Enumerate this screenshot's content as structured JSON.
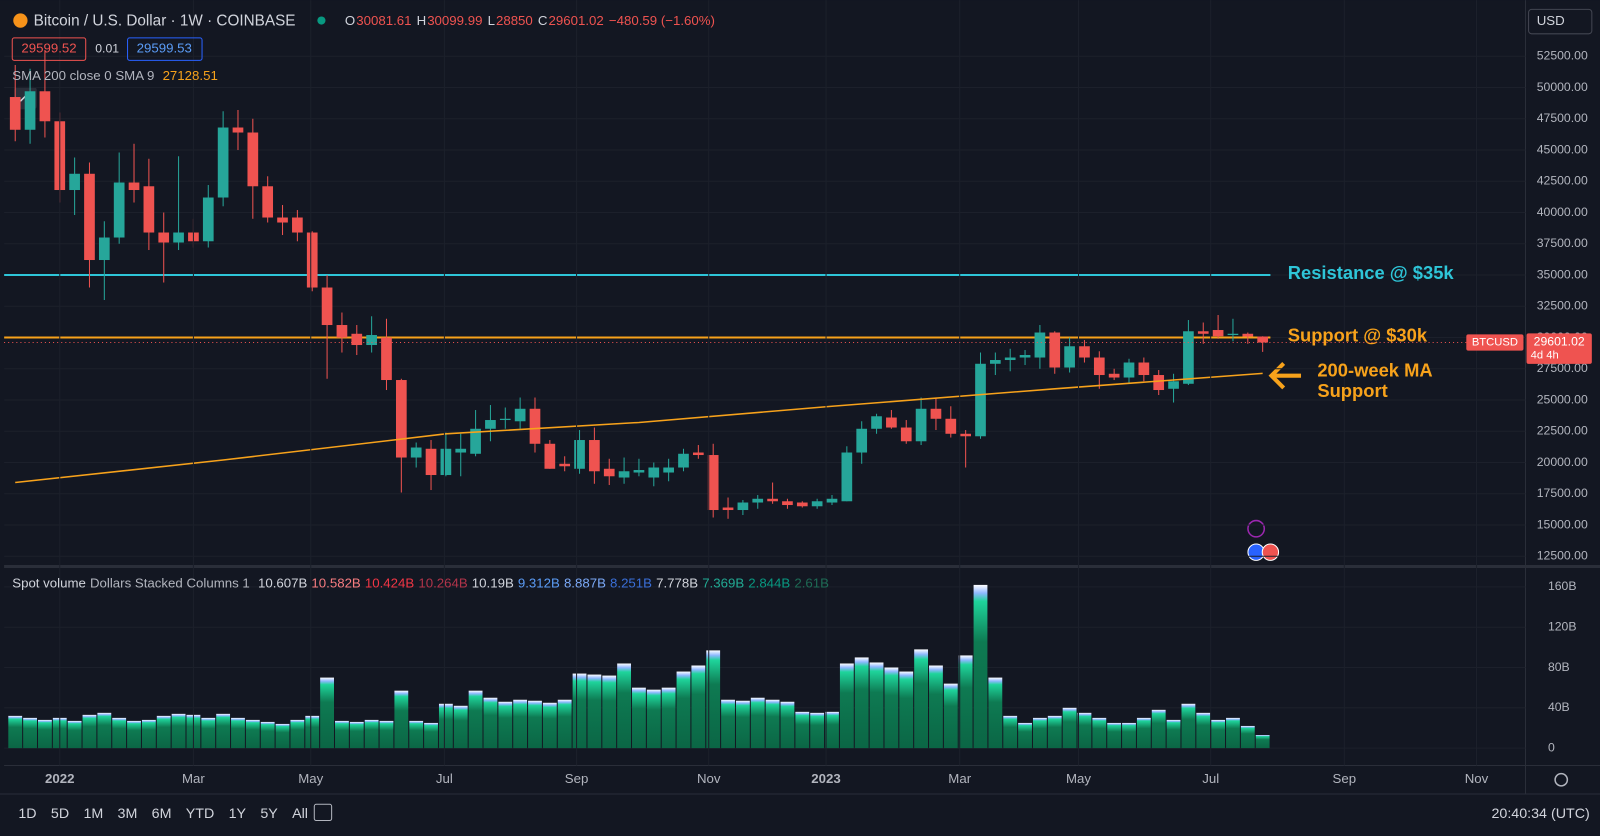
{
  "chart_data": {
    "type": "candlestick",
    "title": "Bitcoin / U.S. Dollar · 1W · COINBASE",
    "ohlc_labels": [
      "O",
      "H",
      "L",
      "C"
    ],
    "change": "−480.59 (−1.60%)",
    "bid": "29599.52",
    "spread": "0.01",
    "ask": "29599.53",
    "indicator_label": "SMA 200 close 0 SMA 9",
    "currency": "USD",
    "up_color": "#26a69a",
    "down_color": "#ef5350",
    "xlim": [
      -0.75,
      101.7
    ],
    "xticks": [
      {
        "value": 3.0,
        "label": "2022"
      },
      {
        "value": 12.0,
        "label": "Mar"
      },
      {
        "value": 19.9,
        "label": "May"
      },
      {
        "value": 28.9,
        "label": "Jul"
      },
      {
        "value": 37.8,
        "label": "Sep"
      },
      {
        "value": 46.7,
        "label": "Nov"
      },
      {
        "value": 54.6,
        "label": "2023"
      },
      {
        "value": 63.6,
        "label": "Mar"
      },
      {
        "value": 71.6,
        "label": "May"
      },
      {
        "value": 80.5,
        "label": "Jul"
      },
      {
        "value": 89.5,
        "label": "Sep"
      },
      {
        "value": 98.4,
        "label": "Nov"
      }
    ],
    "ylim": [
      11684,
      56990
    ],
    "yticks": [
      {
        "value": 12500,
        "label": "12500.00"
      },
      {
        "value": 15000,
        "label": "15000.00"
      },
      {
        "value": 17500,
        "label": "17500.00"
      },
      {
        "value": 20000,
        "label": "20000.00"
      },
      {
        "value": 22500,
        "label": "22500.00"
      },
      {
        "value": 25000,
        "label": "25000.00"
      },
      {
        "value": 27500,
        "label": "27500.00"
      },
      {
        "value": 30000,
        "label": "30000.00"
      },
      {
        "value": 32500,
        "label": "32500.00"
      },
      {
        "value": 35000,
        "label": "35000.00"
      },
      {
        "value": 37500,
        "label": "37500.00"
      },
      {
        "value": 40000,
        "label": "40000.00"
      },
      {
        "value": 42500,
        "label": "42500.00"
      },
      {
        "value": 45000,
        "label": "45000.00"
      },
      {
        "value": 47500,
        "label": "47500.00"
      },
      {
        "value": 50000,
        "label": "50000.00"
      },
      {
        "value": 52500,
        "label": "52500.00"
      }
    ],
    "open": [
      49240,
      46620,
      49700,
      47300,
      41800,
      43100,
      36200,
      38000,
      42400,
      42100,
      38400,
      37600,
      38400,
      37700,
      41200,
      46800,
      46400,
      42100,
      39600,
      39600,
      38400,
      34000,
      31000,
      30300,
      29400,
      30000,
      26600,
      20400,
      21100,
      19000,
      20800,
      20700,
      22700,
      23400,
      23300,
      24300,
      21500,
      19900,
      19500,
      21800,
      19500,
      18800,
      19200,
      18800,
      19200,
      19600,
      20800,
      20600,
      16400,
      16200,
      16800,
      17100,
      16900,
      16800,
      16500,
      16800,
      16900,
      20800,
      22700,
      23600,
      22800,
      21700,
      24300,
      23500,
      22300,
      22100,
      27900,
      28200,
      28400,
      28400,
      30400,
      27600,
      29300,
      28400,
      27100,
      26800,
      28000,
      27000,
      25900,
      26300,
      30500,
      30600,
      30200,
      30300,
      30081.61
    ],
    "high": [
      51800,
      51500,
      53000,
      48000,
      44400,
      44000,
      39300,
      44800,
      45500,
      44300,
      40000,
      44500,
      39500,
      42200,
      48100,
      48200,
      47500,
      42900,
      40600,
      40200,
      38500,
      35000,
      32000,
      31000,
      31700,
      31500,
      26700,
      21600,
      21800,
      22400,
      22300,
      24200,
      24600,
      24400,
      25200,
      25200,
      21800,
      20500,
      22600,
      22800,
      20300,
      20400,
      20300,
      20000,
      20300,
      21100,
      21400,
      21500,
      17200,
      17000,
      17400,
      18400,
      17100,
      16900,
      17100,
      17400,
      21300,
      23300,
      23900,
      24200,
      23400,
      25200,
      25200,
      24500,
      22600,
      28800,
      28800,
      29100,
      29000,
      31000,
      30500,
      30000,
      29800,
      28900,
      27500,
      28300,
      28400,
      27400,
      27100,
      31400,
      31200,
      31800,
      31500,
      30400,
      30099.99
    ],
    "low": [
      45700,
      45500,
      46000,
      40800,
      39800,
      34000,
      33000,
      37500,
      40800,
      37000,
      34400,
      37000,
      37200,
      37200,
      40500,
      45000,
      39500,
      39200,
      38200,
      37700,
      33700,
      26700,
      28800,
      28600,
      28800,
      25800,
      17600,
      19600,
      17800,
      18900,
      18900,
      20500,
      21700,
      22700,
      22700,
      20800,
      19500,
      19300,
      19100,
      18300,
      18200,
      18300,
      18900,
      18100,
      18500,
      19300,
      20300,
      15600,
      15500,
      15800,
      16300,
      16700,
      16300,
      16400,
      16300,
      16600,
      16900,
      19900,
      22300,
      22700,
      21500,
      21400,
      22600,
      22000,
      19600,
      21900,
      27000,
      27300,
      27800,
      27500,
      27100,
      27200,
      28000,
      25900,
      26600,
      26400,
      26500,
      25400,
      24800,
      26200,
      29500,
      29900,
      29700,
      29500,
      28850
    ],
    "close": [
      46620,
      49700,
      47300,
      41800,
      43100,
      36200,
      38000,
      42400,
      41800,
      38400,
      37600,
      38400,
      37700,
      41200,
      46800,
      46400,
      42100,
      39600,
      39200,
      38400,
      34000,
      31000,
      30000,
      29400,
      30200,
      26600,
      20400,
      21200,
      19000,
      21100,
      21100,
      22700,
      23400,
      23500,
      24300,
      21500,
      19500,
      19700,
      21800,
      19300,
      18900,
      19300,
      19400,
      19600,
      19600,
      20700,
      20600,
      16200,
      16200,
      16800,
      17100,
      16900,
      16600,
      16500,
      16900,
      17100,
      20800,
      22700,
      23700,
      22800,
      21700,
      24300,
      23500,
      22300,
      22100,
      27900,
      28200,
      28400,
      28600,
      30400,
      27600,
      29300,
      28400,
      27000,
      26800,
      28000,
      27000,
      25800,
      26500,
      30500,
      30300,
      30100,
      30300,
      30080,
      29601.02
    ],
    "sma": {
      "name": "27128.51",
      "color": "#f7a21b",
      "x": [
        0,
        14,
        29,
        42,
        55,
        70,
        84
      ],
      "values": [
        18400,
        20200,
        22300,
        23200,
        24500,
        25900,
        27128.51
      ]
    },
    "levels": [
      {
        "value": 35000,
        "color": "#2ec5d8",
        "label": "Resistance @ $35k"
      },
      {
        "value": 30000,
        "color": "#f7a21b",
        "label": "Support @ $30k"
      }
    ],
    "ma_annotation": {
      "lines": [
        "200-week MA",
        "Support"
      ],
      "color": "#f7a21b"
    },
    "price_label": {
      "symbol": "BTCUSD",
      "countdown": "4d 4h"
    },
    "volume": {
      "title": "Spot volume",
      "subtitle": "Dollars Stacked Columns 1",
      "legend": [
        {
          "label": "10.607B",
          "color": "#d1d4dc"
        },
        {
          "label": "10.582B",
          "color": "#f77c80"
        },
        {
          "label": "10.424B",
          "color": "#f23645"
        },
        {
          "label": "10.264B",
          "color": "#b2344a"
        },
        {
          "label": "10.19B",
          "color": "#d1d4dc"
        },
        {
          "label": "9.312B",
          "color": "#5b9cf6"
        },
        {
          "label": "8.887B",
          "color": "#7ba9f7"
        },
        {
          "label": "8.251B",
          "color": "#3a6fd8"
        },
        {
          "label": "7.778B",
          "color": "#d1d4dc"
        },
        {
          "label": "7.369B",
          "color": "#22ab94"
        },
        {
          "label": "2.844B",
          "color": "#089981"
        },
        {
          "label": "2.61B",
          "color": "#1e6b55"
        }
      ],
      "ylim": [
        -17.2,
        180.3
      ],
      "yticks": [
        0,
        {
          "value": 40,
          "label": "40B"
        },
        {
          "value": 80,
          "label": "80B"
        },
        {
          "value": 120,
          "label": "120B"
        },
        {
          "value": 160,
          "label": "160B"
        }
      ],
      "values": [
        32,
        30,
        28,
        30,
        27,
        33,
        35,
        30,
        27,
        28,
        32,
        34,
        33,
        30,
        34,
        30,
        28,
        26,
        24,
        28,
        32,
        70,
        27,
        26,
        28,
        27,
        57,
        27,
        25,
        44,
        42,
        57,
        50,
        46,
        48,
        47,
        45,
        48,
        74,
        73,
        72,
        84,
        60,
        58,
        60,
        76,
        82,
        97,
        48,
        47,
        50,
        48,
        46,
        36,
        35,
        36,
        84,
        90,
        85,
        80,
        76,
        98,
        82,
        64,
        92,
        162,
        70,
        32,
        25,
        30,
        32,
        40,
        35,
        30,
        25,
        25,
        30,
        38,
        28,
        44,
        35,
        28,
        30,
        22,
        13
      ]
    },
    "timeframes": [
      "1D",
      "5D",
      "1M",
      "3M",
      "6M",
      "YTD",
      "1Y",
      "5Y",
      "All"
    ],
    "clock": "20:40:34 (UTC)"
  }
}
